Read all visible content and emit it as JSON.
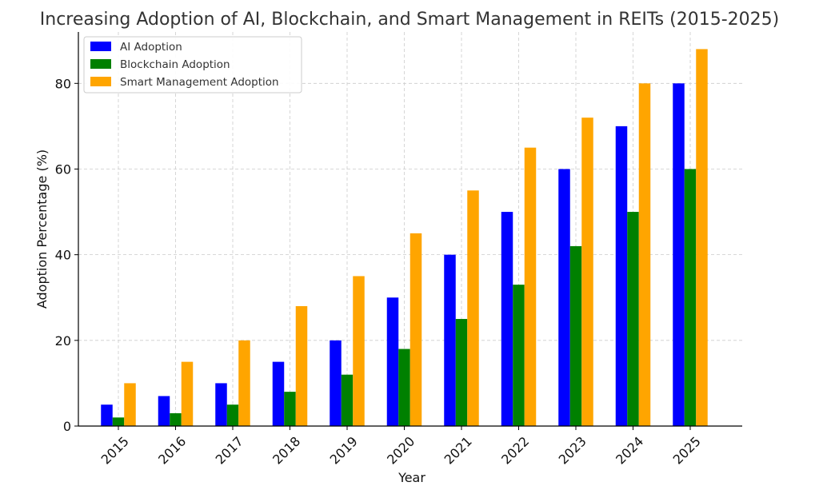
{
  "chart_data": {
    "type": "bar",
    "title": "Increasing Adoption of AI, Blockchain, and Smart Management in REITs (2015-2025)",
    "xlabel": "Year",
    "ylabel": "Adoption Percentage (%)",
    "categories": [
      "2015",
      "2016",
      "2017",
      "2018",
      "2019",
      "2020",
      "2021",
      "2022",
      "2023",
      "2024",
      "2025"
    ],
    "ylim": [
      0,
      92
    ],
    "yticks": [
      0,
      20,
      40,
      60,
      80
    ],
    "grid": true,
    "legend_position": "top-left",
    "series": [
      {
        "name": "AI Adoption",
        "color": "#0000ff",
        "values": [
          5,
          7,
          10,
          15,
          20,
          30,
          40,
          50,
          60,
          70,
          80
        ]
      },
      {
        "name": "Blockchain Adoption",
        "color": "#008000",
        "values": [
          2,
          3,
          5,
          8,
          12,
          18,
          25,
          33,
          42,
          50,
          60
        ]
      },
      {
        "name": "Smart Management Adoption",
        "color": "#ffa500",
        "values": [
          10,
          15,
          20,
          28,
          35,
          45,
          55,
          65,
          72,
          80,
          88
        ]
      }
    ]
  }
}
